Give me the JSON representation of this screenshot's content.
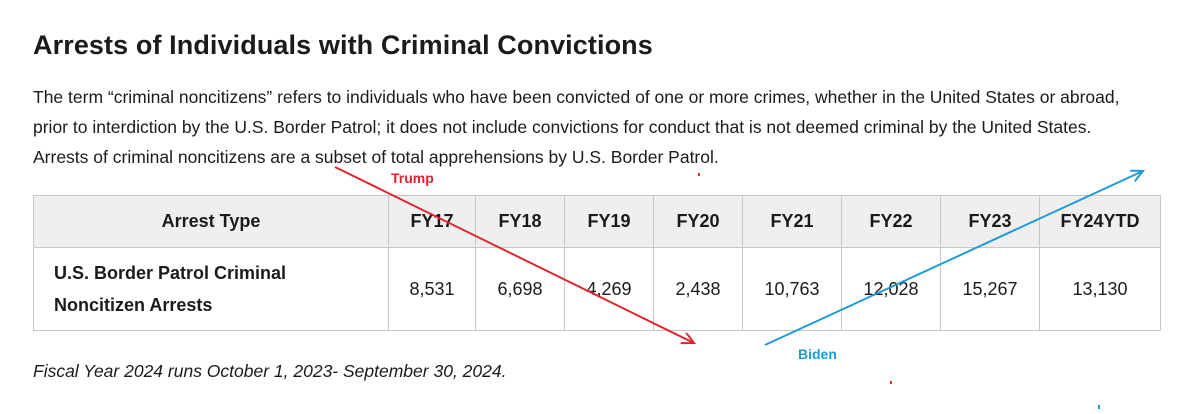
{
  "title": "Arrests of Individuals with Criminal Convictions",
  "description": "The term “criminal noncitizens” refers to individuals who have been convicted of one or more crimes, whether in the United States or abroad, prior to interdiction by the U.S. Border Patrol; it does not include convictions for conduct that is not deemed criminal by the United States. Arrests of criminal noncitizens are a subset of total apprehensions by U.S. Border Patrol.",
  "table": {
    "headers": [
      "Arrest Type",
      "FY17",
      "FY18",
      "FY19",
      "FY20",
      "FY21",
      "FY22",
      "FY23",
      "FY24YTD"
    ],
    "row": {
      "label": "U.S. Border Patrol Criminal Noncitizen Arrests",
      "values": [
        "8,531",
        "6,698",
        "4,269",
        "2,438",
        "10,763",
        "12,028",
        "15,267",
        "13,130"
      ]
    }
  },
  "footnote": "Fiscal Year 2024 runs October 1, 2023- September 30, 2024.",
  "annotations": {
    "trump": {
      "label": "Trump",
      "color": "#e0242b"
    },
    "biden": {
      "label": "Biden",
      "color": "#1e9ad6"
    }
  }
}
